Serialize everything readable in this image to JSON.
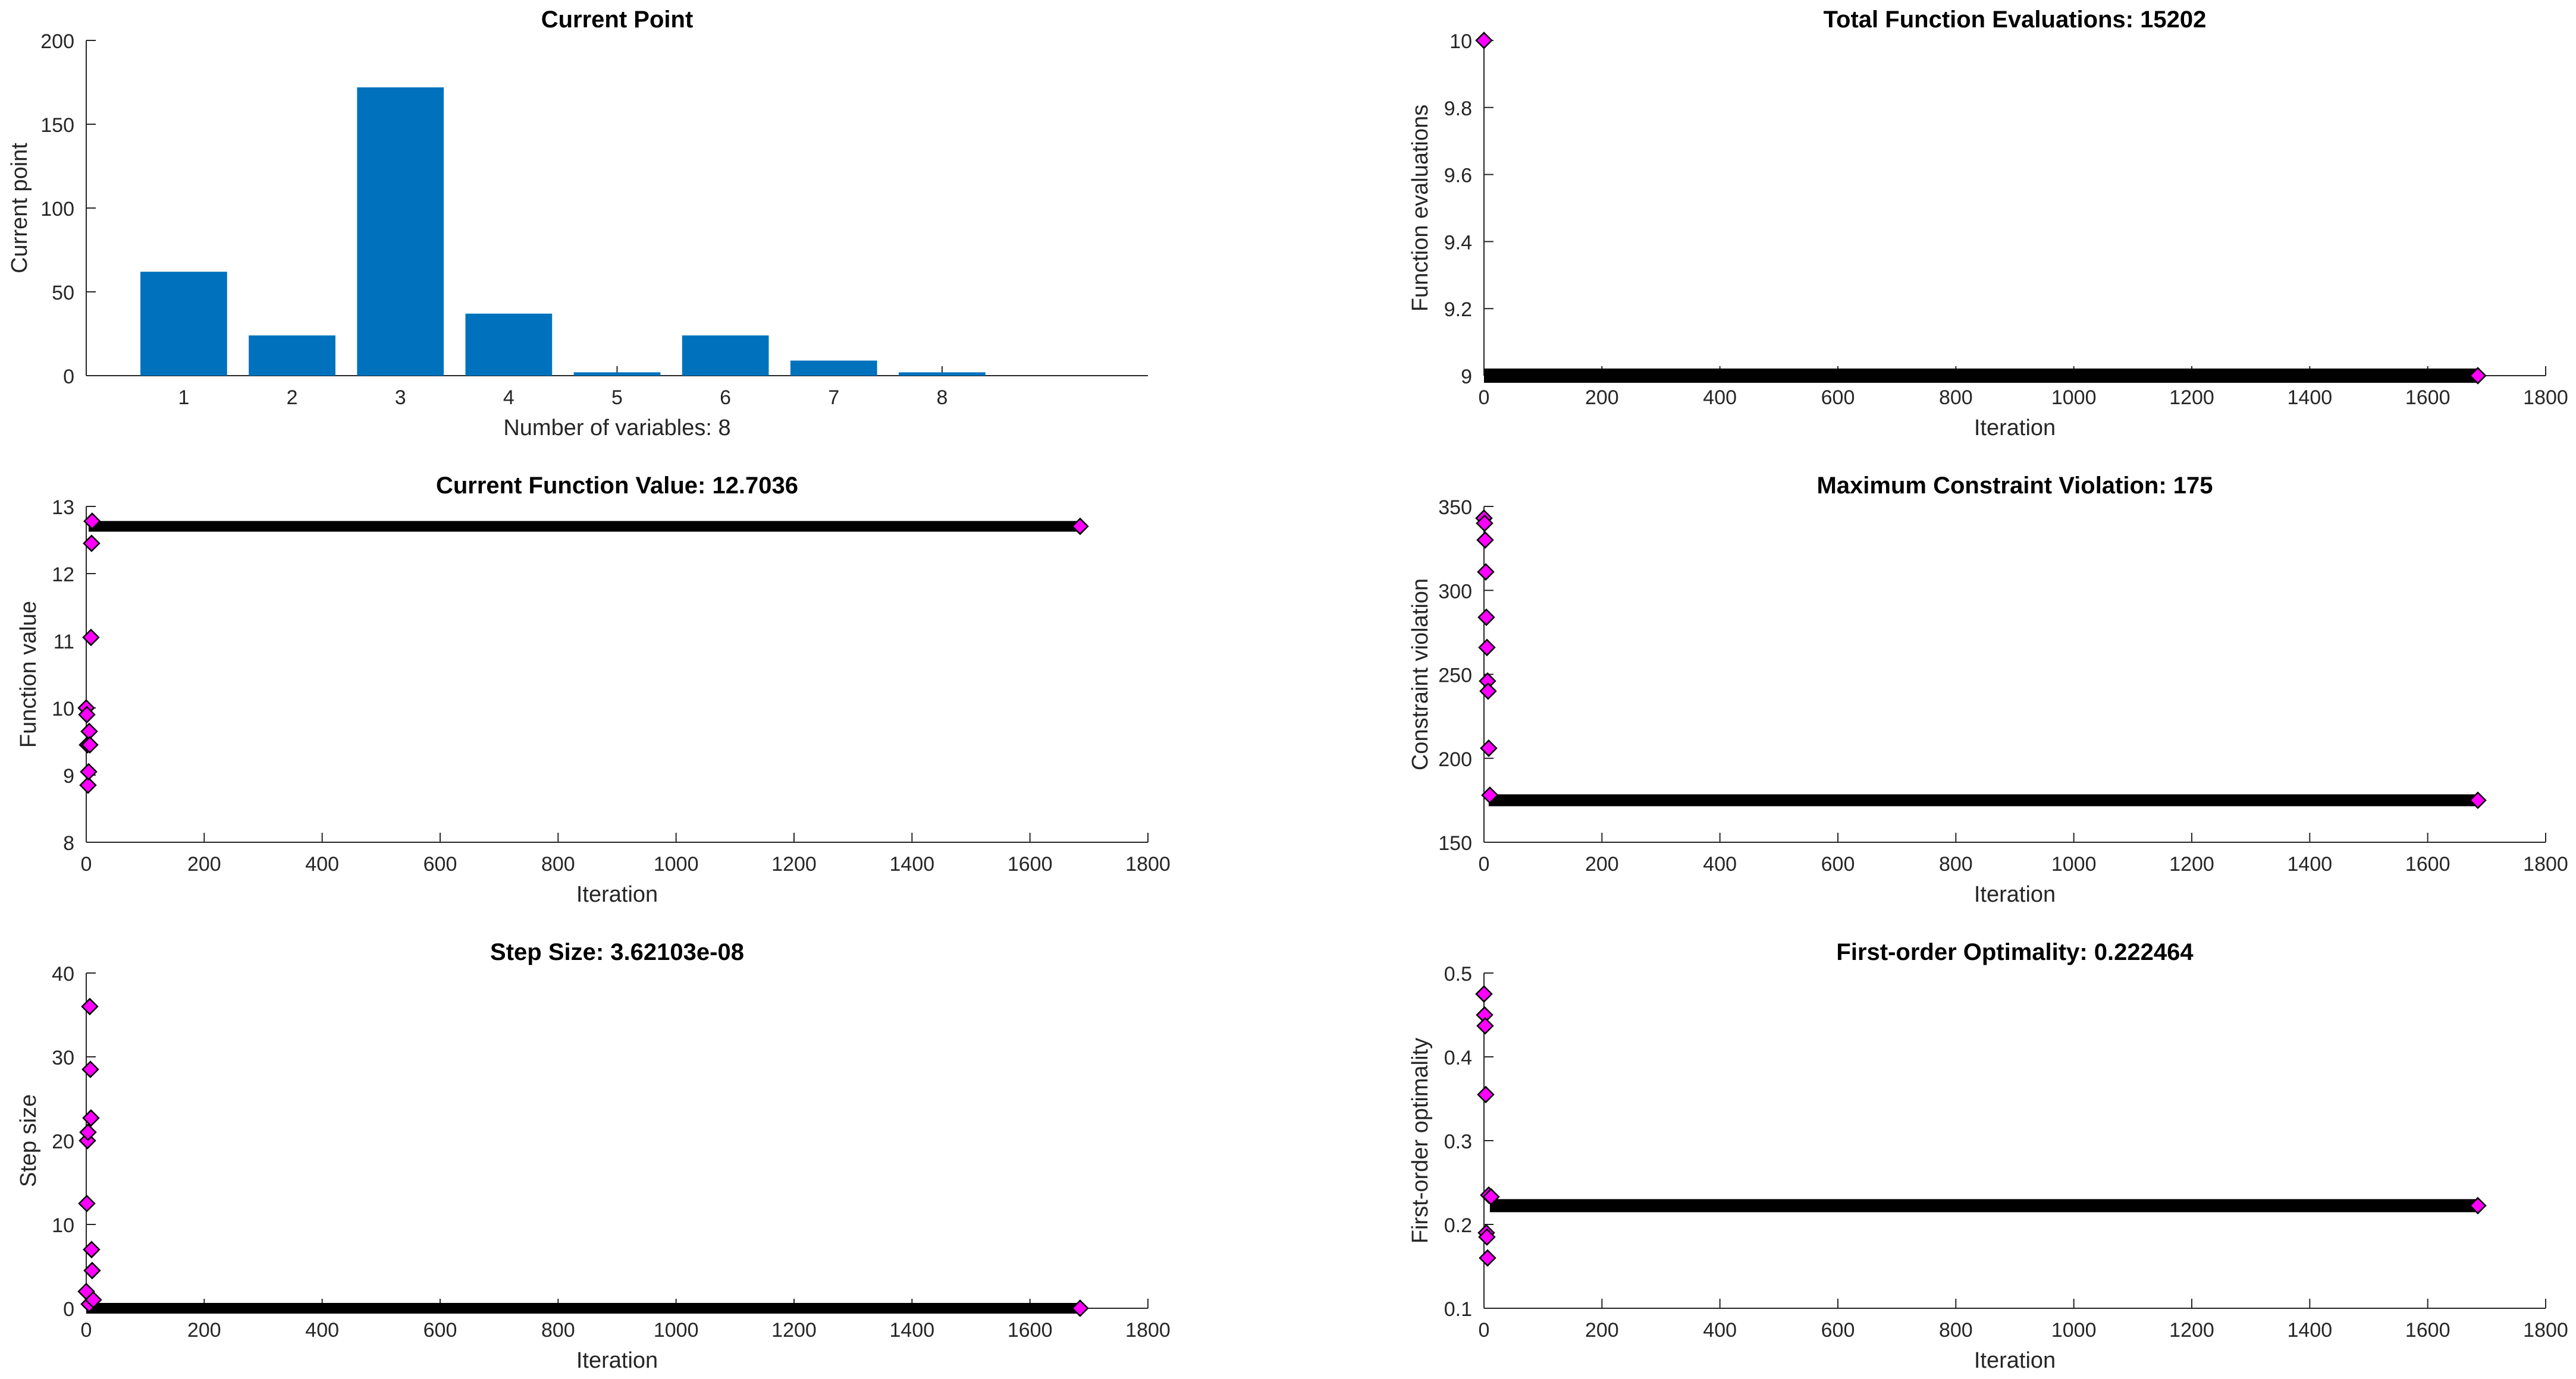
{
  "chart_data": [
    {
      "id": "current-point",
      "type": "bar",
      "title": "Current Point",
      "xlabel": "Number of variables: 8",
      "ylabel": "Current point",
      "categories": [
        "1",
        "2",
        "3",
        "4",
        "5",
        "6",
        "7",
        "8"
      ],
      "values": [
        62,
        24,
        172,
        37,
        2,
        24,
        9,
        2
      ],
      "xlim": [
        0.1,
        9.9
      ],
      "ylim": [
        0,
        200
      ],
      "yticks": [
        0,
        50,
        100,
        150,
        200
      ],
      "bar_color": "#0072BD"
    },
    {
      "id": "total-function-evaluations",
      "type": "scatter",
      "title": "Total Function Evaluations: 15202",
      "xlabel": "Iteration",
      "ylabel": "Function evaluations",
      "xlim": [
        0,
        1800
      ],
      "ylim": [
        9,
        10
      ],
      "xticks": [
        0,
        200,
        400,
        600,
        800,
        1000,
        1200,
        1400,
        1600,
        1800
      ],
      "yticks": [
        9,
        9.2,
        9.4,
        9.6,
        9.8,
        10
      ],
      "band": {
        "from": 0,
        "to": 1685,
        "value": 9
      },
      "points": [
        [
          0,
          10
        ],
        [
          1685,
          9
        ]
      ],
      "marker_color": "#ff00ff"
    },
    {
      "id": "current-function-value",
      "type": "scatter",
      "title": "Current Function Value: 12.7036",
      "xlabel": "Iteration",
      "ylabel": "Function value",
      "xlim": [
        0,
        1800
      ],
      "ylim": [
        8,
        13
      ],
      "xticks": [
        0,
        200,
        400,
        600,
        800,
        1000,
        1200,
        1400,
        1600,
        1800
      ],
      "yticks": [
        8,
        9,
        10,
        11,
        12,
        13
      ],
      "band": {
        "from": 4,
        "to": 1685,
        "value": 12.7036
      },
      "points": [
        [
          0,
          10
        ],
        [
          1,
          9.9
        ],
        [
          2,
          9.45
        ],
        [
          3,
          8.85
        ],
        [
          4,
          9.05
        ],
        [
          5,
          9.65
        ],
        [
          6,
          9.45
        ],
        [
          8,
          11.05
        ],
        [
          9,
          12.45
        ],
        [
          10,
          12.78
        ],
        [
          1685,
          12.7036
        ]
      ],
      "marker_color": "#ff00ff"
    },
    {
      "id": "maximum-constraint-violation",
      "type": "scatter",
      "title": "Maximum Constraint Violation: 175",
      "xlabel": "Iteration",
      "ylabel": "Constraint violation",
      "xlim": [
        0,
        1800
      ],
      "ylim": [
        150,
        350
      ],
      "xticks": [
        0,
        200,
        400,
        600,
        800,
        1000,
        1200,
        1400,
        1600,
        1800
      ],
      "yticks": [
        150,
        200,
        250,
        300,
        350
      ],
      "band": {
        "from": 8,
        "to": 1685,
        "value": 175
      },
      "points": [
        [
          0,
          343
        ],
        [
          1,
          340
        ],
        [
          2,
          330
        ],
        [
          3,
          311
        ],
        [
          4,
          284
        ],
        [
          5,
          266
        ],
        [
          6,
          246
        ],
        [
          7,
          240
        ],
        [
          8,
          206
        ],
        [
          10,
          178
        ],
        [
          1685,
          175
        ]
      ],
      "marker_color": "#ff00ff"
    },
    {
      "id": "step-size",
      "type": "scatter",
      "title": "Step Size: 3.62103e-08",
      "xlabel": "Iteration",
      "ylabel": "Step size",
      "xlim": [
        0,
        1800
      ],
      "ylim": [
        0,
        40
      ],
      "xticks": [
        0,
        200,
        400,
        600,
        800,
        1000,
        1200,
        1400,
        1600,
        1800
      ],
      "yticks": [
        0,
        10,
        20,
        30,
        40
      ],
      "band": {
        "from": 0,
        "to": 1685,
        "value": 0
      },
      "points": [
        [
          0,
          2
        ],
        [
          1,
          12.5
        ],
        [
          2,
          20
        ],
        [
          3,
          21
        ],
        [
          5,
          0.5
        ],
        [
          6,
          36
        ],
        [
          7,
          28.5
        ],
        [
          8,
          22.7
        ],
        [
          9,
          7
        ],
        [
          10,
          4.5
        ],
        [
          12,
          1
        ],
        [
          1685,
          0
        ]
      ],
      "marker_color": "#ff00ff"
    },
    {
      "id": "first-order-optimality",
      "type": "scatter",
      "title": "First-order Optimality: 0.222464",
      "xlabel": "Iteration",
      "ylabel": "First-order optimality",
      "xlim": [
        0,
        1800
      ],
      "ylim": [
        0.1,
        0.5
      ],
      "xticks": [
        0,
        200,
        400,
        600,
        800,
        1000,
        1200,
        1400,
        1600,
        1800
      ],
      "yticks": [
        0.1,
        0.2,
        0.3,
        0.4,
        0.5
      ],
      "band": {
        "from": 10,
        "to": 1685,
        "value": 0.222464
      },
      "points": [
        [
          0,
          0.475
        ],
        [
          1,
          0.45
        ],
        [
          2,
          0.437
        ],
        [
          3,
          0.355
        ],
        [
          4,
          0.19
        ],
        [
          5,
          0.185
        ],
        [
          6,
          0.16
        ],
        [
          8,
          0.235
        ],
        [
          12,
          0.233
        ],
        [
          1685,
          0.222464
        ]
      ],
      "marker_color": "#ff00ff"
    }
  ]
}
